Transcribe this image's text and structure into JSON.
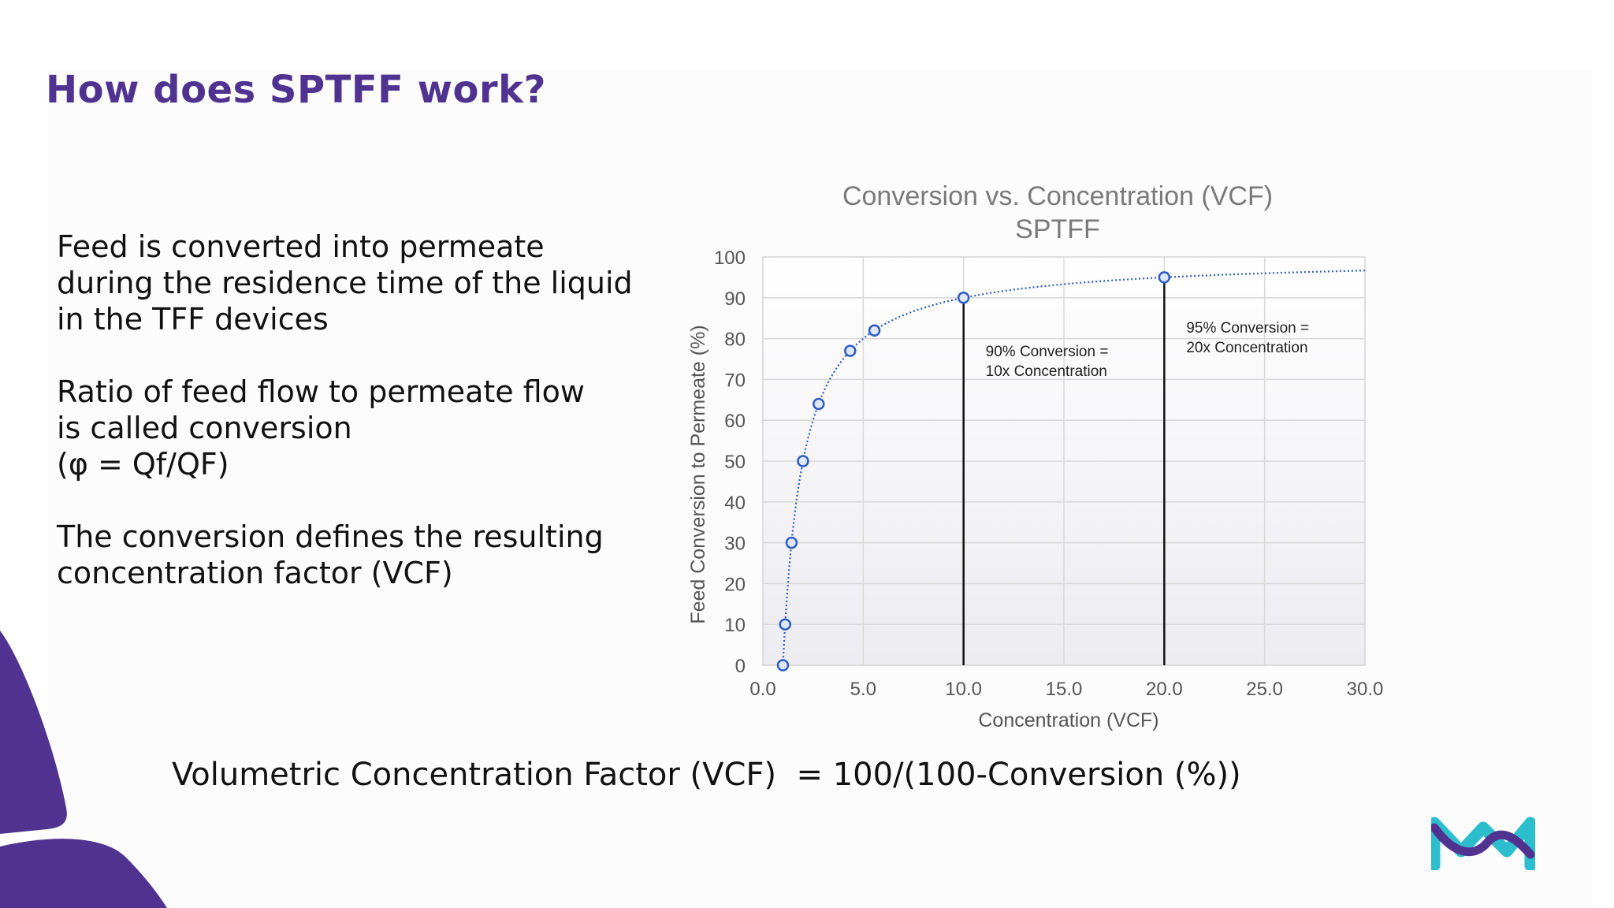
{
  "slide": {
    "title": "How does SPTFF work?",
    "paragraphs": [
      "Feed is converted into permeate\nduring the residence time of the liquid\nin the TFF devices",
      "Ratio of feed flow to permeate flow\nis called conversion\n(φ = Qf/QF)",
      "The conversion defines the resulting\nconcentration factor (VCF)"
    ],
    "formula": "Volumetric Concentration Factor (VCF)  = 100/(100-Conversion (%))"
  },
  "colors": {
    "brand_purple": "#503291",
    "logo_teal": "#2dbecd",
    "series_blue": "#2e5cc4"
  },
  "chart_data": {
    "type": "scatter",
    "title": "Conversion vs. Concentration (VCF)",
    "subtitle": "SPTFF",
    "xlabel": "Concentration (VCF)",
    "ylabel": "Feed Conversion to Permeate (%)",
    "xlim": [
      0,
      30
    ],
    "ylim": [
      0,
      100
    ],
    "x_ticks": [
      "0.0",
      "5.0",
      "10.0",
      "15.0",
      "20.0",
      "25.0",
      "30.0"
    ],
    "y_ticks": [
      "0",
      "10",
      "20",
      "30",
      "40",
      "50",
      "60",
      "70",
      "80",
      "90",
      "100"
    ],
    "grid": true,
    "series": [
      {
        "x": [
          1.0,
          1.11,
          1.43,
          2.0,
          2.78,
          4.35,
          5.56,
          10.0,
          20.0
        ],
        "y": [
          0,
          10,
          30,
          50,
          64,
          77,
          82,
          90,
          95
        ]
      }
    ],
    "curve": "y = 100 - 100/x",
    "reference_lines": [
      {
        "x": 10,
        "y": 90,
        "label_lines": [
          "90% Conversion  =",
          "10x Concentration"
        ]
      },
      {
        "x": 20,
        "y": 95,
        "label_lines": [
          "95% Conversion  =",
          "20x Concentration"
        ]
      }
    ]
  }
}
